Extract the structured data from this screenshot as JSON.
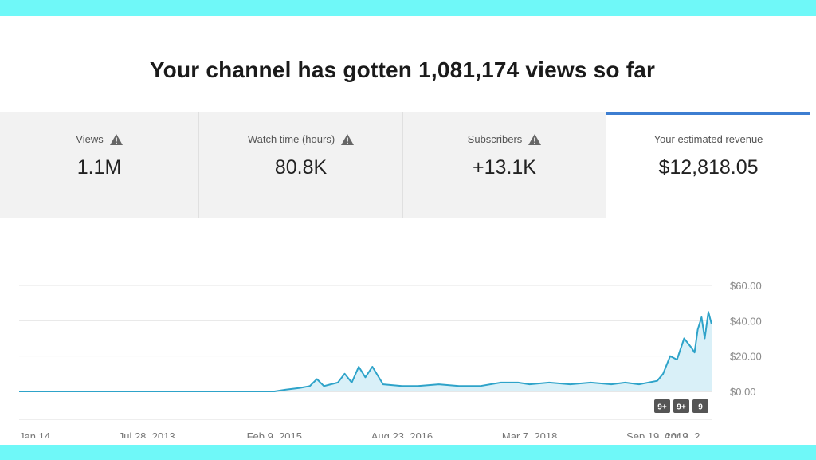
{
  "headline": "Your channel has gotten 1,081,174 views so far",
  "tabs": [
    {
      "label": "Views",
      "value": "1.1M",
      "warning": true
    },
    {
      "label": "Watch time (hours)",
      "value": "80.8K",
      "warning": true
    },
    {
      "label": "Subscribers",
      "value": "+13.1K",
      "warning": true
    },
    {
      "label": "Your estimated revenue",
      "value": "$12,818.05",
      "warning": false,
      "selected": true
    }
  ],
  "icons": {
    "warning": "warning-triangle-icon"
  },
  "badges": [
    "9+",
    "9+",
    "9"
  ],
  "colors": {
    "line": "#2ea3c9",
    "fill": "#d9f0f8",
    "accent": "#3d7ed1",
    "frame": "#6ff8f8"
  },
  "chart_data": {
    "type": "area",
    "series": [
      {
        "x": [
          "2012-01-14",
          "2012-04-01",
          "2012-07-01",
          "2012-10-01",
          "2013-01-01",
          "2013-04-01",
          "2013-07-28",
          "2013-10-01",
          "2014-01-01",
          "2014-04-01",
          "2014-07-01",
          "2014-10-01",
          "2014-12-01",
          "2015-01-15",
          "2015-02-09",
          "2015-04-01",
          "2015-06-01",
          "2015-07-15",
          "2015-08-15",
          "2015-09-15",
          "2015-10-15",
          "2015-11-15",
          "2015-12-15",
          "2016-01-15",
          "2016-02-15",
          "2016-03-15",
          "2016-04-15",
          "2016-06-01",
          "2016-08-23",
          "2016-11-01",
          "2017-02-01",
          "2017-05-01",
          "2017-08-01",
          "2017-11-01",
          "2018-01-15",
          "2018-03-07",
          "2018-06-01",
          "2018-09-01",
          "2018-12-01",
          "2019-03-01",
          "2019-05-01",
          "2019-07-01",
          "2019-09-19",
          "2019-10-15",
          "2019-11-15",
          "2019-12-15",
          "2020-01-15",
          "2020-02-15",
          "2020-03-01",
          "2020-03-15",
          "2020-04-01",
          "2020-04-15",
          "2020-05-01",
          "2020-05-15"
        ],
        "values": [
          0,
          0,
          0,
          0,
          0,
          0,
          0,
          0,
          0,
          0,
          0,
          0,
          0,
          0,
          0,
          1,
          2,
          3,
          7,
          3,
          4,
          5,
          10,
          5,
          14,
          8,
          14,
          4,
          3,
          3,
          4,
          3,
          3,
          5,
          5,
          4,
          5,
          4,
          5,
          4,
          5,
          4,
          6,
          10,
          20,
          18,
          30,
          25,
          22,
          35,
          42,
          30,
          45,
          38
        ]
      }
    ],
    "x_tick_labels": [
      "Jan 14, ...",
      "Jul 28, 2013",
      "Feb 9, 2015",
      "Aug 23, 2016",
      "Mar 7, 2018",
      "Sep 19, 2019",
      "Apr 2, 2..."
    ],
    "x_tick_dates": [
      "2012-01-14",
      "2013-07-28",
      "2015-02-09",
      "2016-08-23",
      "2018-03-07",
      "2019-09-19",
      "2021-04-02"
    ],
    "y_tick_labels": [
      "$0.00",
      "$20.00",
      "$40.00",
      "$60.00"
    ],
    "y_ticks": [
      0,
      20,
      40,
      60
    ],
    "ylim": [
      0,
      60
    ],
    "grid": true,
    "axis_position": "right"
  }
}
